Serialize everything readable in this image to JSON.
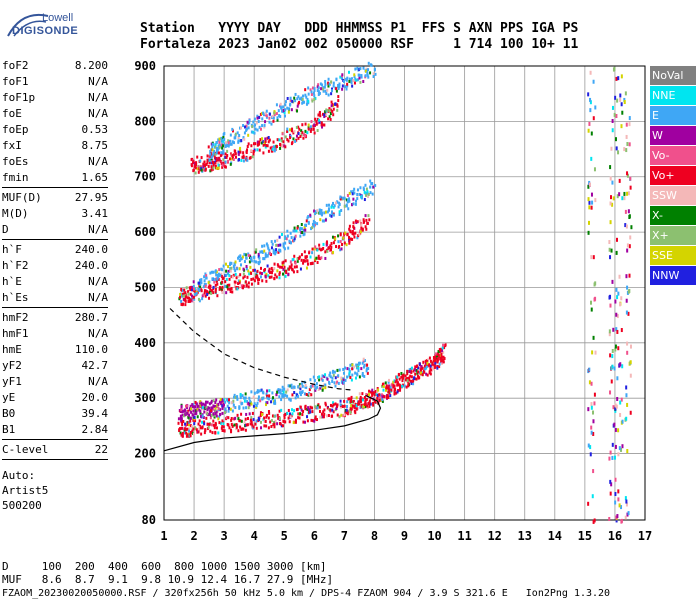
{
  "logo": {
    "line1": "Lowell",
    "line2": "DIGISONDE"
  },
  "header": {
    "row1": "Station   YYYY DAY   DDD HHMMSS P1  FFS S AXN PPS IGA PS",
    "row2": "Fortaleza 2023 Jan02 002 050000 RSF     1 714 100 10+ 11"
  },
  "params": {
    "group1": [
      {
        "k": "foF2",
        "v": "8.200"
      },
      {
        "k": "foF1",
        "v": "N/A"
      },
      {
        "k": "foF1p",
        "v": "N/A"
      },
      {
        "k": "foE",
        "v": "N/A"
      },
      {
        "k": "foEp",
        "v": "0.53"
      },
      {
        "k": "fxI",
        "v": "8.75"
      },
      {
        "k": "foEs",
        "v": "N/A"
      },
      {
        "k": "fmin",
        "v": "1.65"
      }
    ],
    "group2": [
      {
        "k": "MUF(D)",
        "v": "27.95"
      },
      {
        "k": "M(D)",
        "v": "3.41"
      },
      {
        "k": "D",
        "v": "N/A"
      }
    ],
    "group3": [
      {
        "k": "h`F",
        "v": "240.0"
      },
      {
        "k": "h`F2",
        "v": "240.0"
      },
      {
        "k": "h`E",
        "v": "N/A"
      },
      {
        "k": "h`Es",
        "v": "N/A"
      }
    ],
    "group4": [
      {
        "k": "hmF2",
        "v": "280.7"
      },
      {
        "k": "hmF1",
        "v": "N/A"
      },
      {
        "k": "hmE",
        "v": "110.0"
      },
      {
        "k": "yF2",
        "v": "42.7"
      },
      {
        "k": "yF1",
        "v": "N/A"
      },
      {
        "k": "yE",
        "v": "20.0"
      },
      {
        "k": "B0",
        "v": "39.4"
      },
      {
        "k": "B1",
        "v": "2.84"
      }
    ],
    "group5": [
      {
        "k": "C-level",
        "v": "22"
      }
    ],
    "auto": [
      "Auto:",
      "Artist5",
      "500200"
    ]
  },
  "legend": [
    {
      "label": "NoVal",
      "color": "#808080",
      "text_color": "#ffffff"
    },
    {
      "label": "NNE",
      "color": "#00e5f0",
      "text_color": "#ffffff"
    },
    {
      "label": "E",
      "color": "#3fa7f5",
      "text_color": "#ffffff"
    },
    {
      "label": "W",
      "color": "#a000a0",
      "text_color": "#ffffff"
    },
    {
      "label": "Vo-",
      "color": "#f0508c",
      "text_color": "#ffffff"
    },
    {
      "label": "Vo+",
      "color": "#ee0020",
      "text_color": "#ffffff"
    },
    {
      "label": "SSW",
      "color": "#f4b8b8",
      "text_color": "#ffffff"
    },
    {
      "label": "X-",
      "color": "#008000",
      "text_color": "#ffffff"
    },
    {
      "label": "X+",
      "color": "#8cc070",
      "text_color": "#ffffff"
    },
    {
      "label": "SSE",
      "color": "#d4d400",
      "text_color": "#ffffff"
    },
    {
      "label": "NNW",
      "color": "#2020e0",
      "text_color": "#ffffff"
    }
  ],
  "footer": {
    "line1": "D     100  200  400  600  800 1000 1500 3000 [km]",
    "line2": "MUF   8.6  8.7  9.1  9.8 10.9 12.4 16.7 27.9 [MHz]",
    "line3": "FZAOM_20230020050000.RSF / 320fx256h 50 kHz 5.0 km / DPS-4 FZAOM 904 / 3.9 S 321.6 E   Ion2Png 1.3.20"
  },
  "chart_data": {
    "type": "scatter",
    "xlabel": "",
    "ylabel": "",
    "xlim": [
      1,
      17
    ],
    "ylim": [
      80,
      900
    ],
    "x_ticks": [
      "1",
      "2",
      "3",
      "4",
      "5",
      "6",
      "7",
      "8",
      "9",
      "10",
      "11",
      "12",
      "13",
      "14",
      "15",
      "16",
      "17"
    ],
    "y_ticks": [
      "80",
      "200",
      "300",
      "400",
      "500",
      "600",
      "700",
      "800",
      "900"
    ],
    "grid": true,
    "traces": [
      {
        "name": "F2 trace 1 (O)",
        "color": "#ee0020",
        "x": [
          1.5,
          2,
          3,
          4,
          5,
          6,
          7,
          7.5,
          8,
          8.5,
          9,
          9.5,
          10,
          10.3
        ],
        "y": [
          240,
          245,
          250,
          255,
          262,
          270,
          280,
          290,
          300,
          315,
          330,
          345,
          360,
          380
        ]
      },
      {
        "name": "F2 trace 1 (W)",
        "color": "#a000a0",
        "x": [
          1.5,
          2,
          2.5,
          3
        ],
        "y": [
          270,
          275,
          278,
          282
        ]
      },
      {
        "name": "F2 trace 1 (E)",
        "color": "#3fa7f5",
        "x": [
          3,
          4,
          5,
          6,
          7,
          7.8
        ],
        "y": [
          285,
          295,
          305,
          320,
          340,
          355
        ]
      },
      {
        "name": "F2 trace 2",
        "color": "#ee0020",
        "x": [
          1.5,
          2,
          3,
          4,
          5,
          6,
          7,
          7.8
        ],
        "y": [
          478,
          485,
          500,
          515,
          530,
          555,
          585,
          620
        ]
      },
      {
        "name": "F2 trace 3",
        "color": "#ee0020",
        "x": [
          1.9,
          2.5,
          3,
          4,
          5,
          6,
          6.8
        ],
        "y": [
          715,
          722,
          728,
          745,
          765,
          790,
          830
        ]
      },
      {
        "name": "upper cyan 2",
        "color": "#3fa7f5",
        "x": [
          2,
          3,
          4,
          5,
          6,
          7,
          8
        ],
        "y": [
          495,
          525,
          550,
          580,
          620,
          650,
          680
        ]
      },
      {
        "name": "upper cyan 3",
        "color": "#3fa7f5",
        "x": [
          2.5,
          3,
          4,
          5,
          6,
          7,
          8
        ],
        "y": [
          740,
          760,
          790,
          820,
          850,
          870,
          890
        ]
      }
    ],
    "profile_solid": {
      "x": [
        1,
        2,
        3,
        4,
        5,
        6,
        7,
        7.8,
        8.1,
        8.2,
        8.1,
        7.7
      ],
      "y": [
        205,
        220,
        228,
        232,
        236,
        242,
        250,
        262,
        270,
        282,
        295,
        305
      ]
    },
    "profile_dashed": {
      "x": [
        1.2,
        2,
        3,
        4,
        5,
        6,
        6.8,
        7.2
      ],
      "y": [
        462,
        420,
        380,
        355,
        338,
        325,
        317,
        315
      ]
    },
    "noise_columns_x": [
      15.2,
      15.9,
      16.1,
      16.4
    ]
  }
}
